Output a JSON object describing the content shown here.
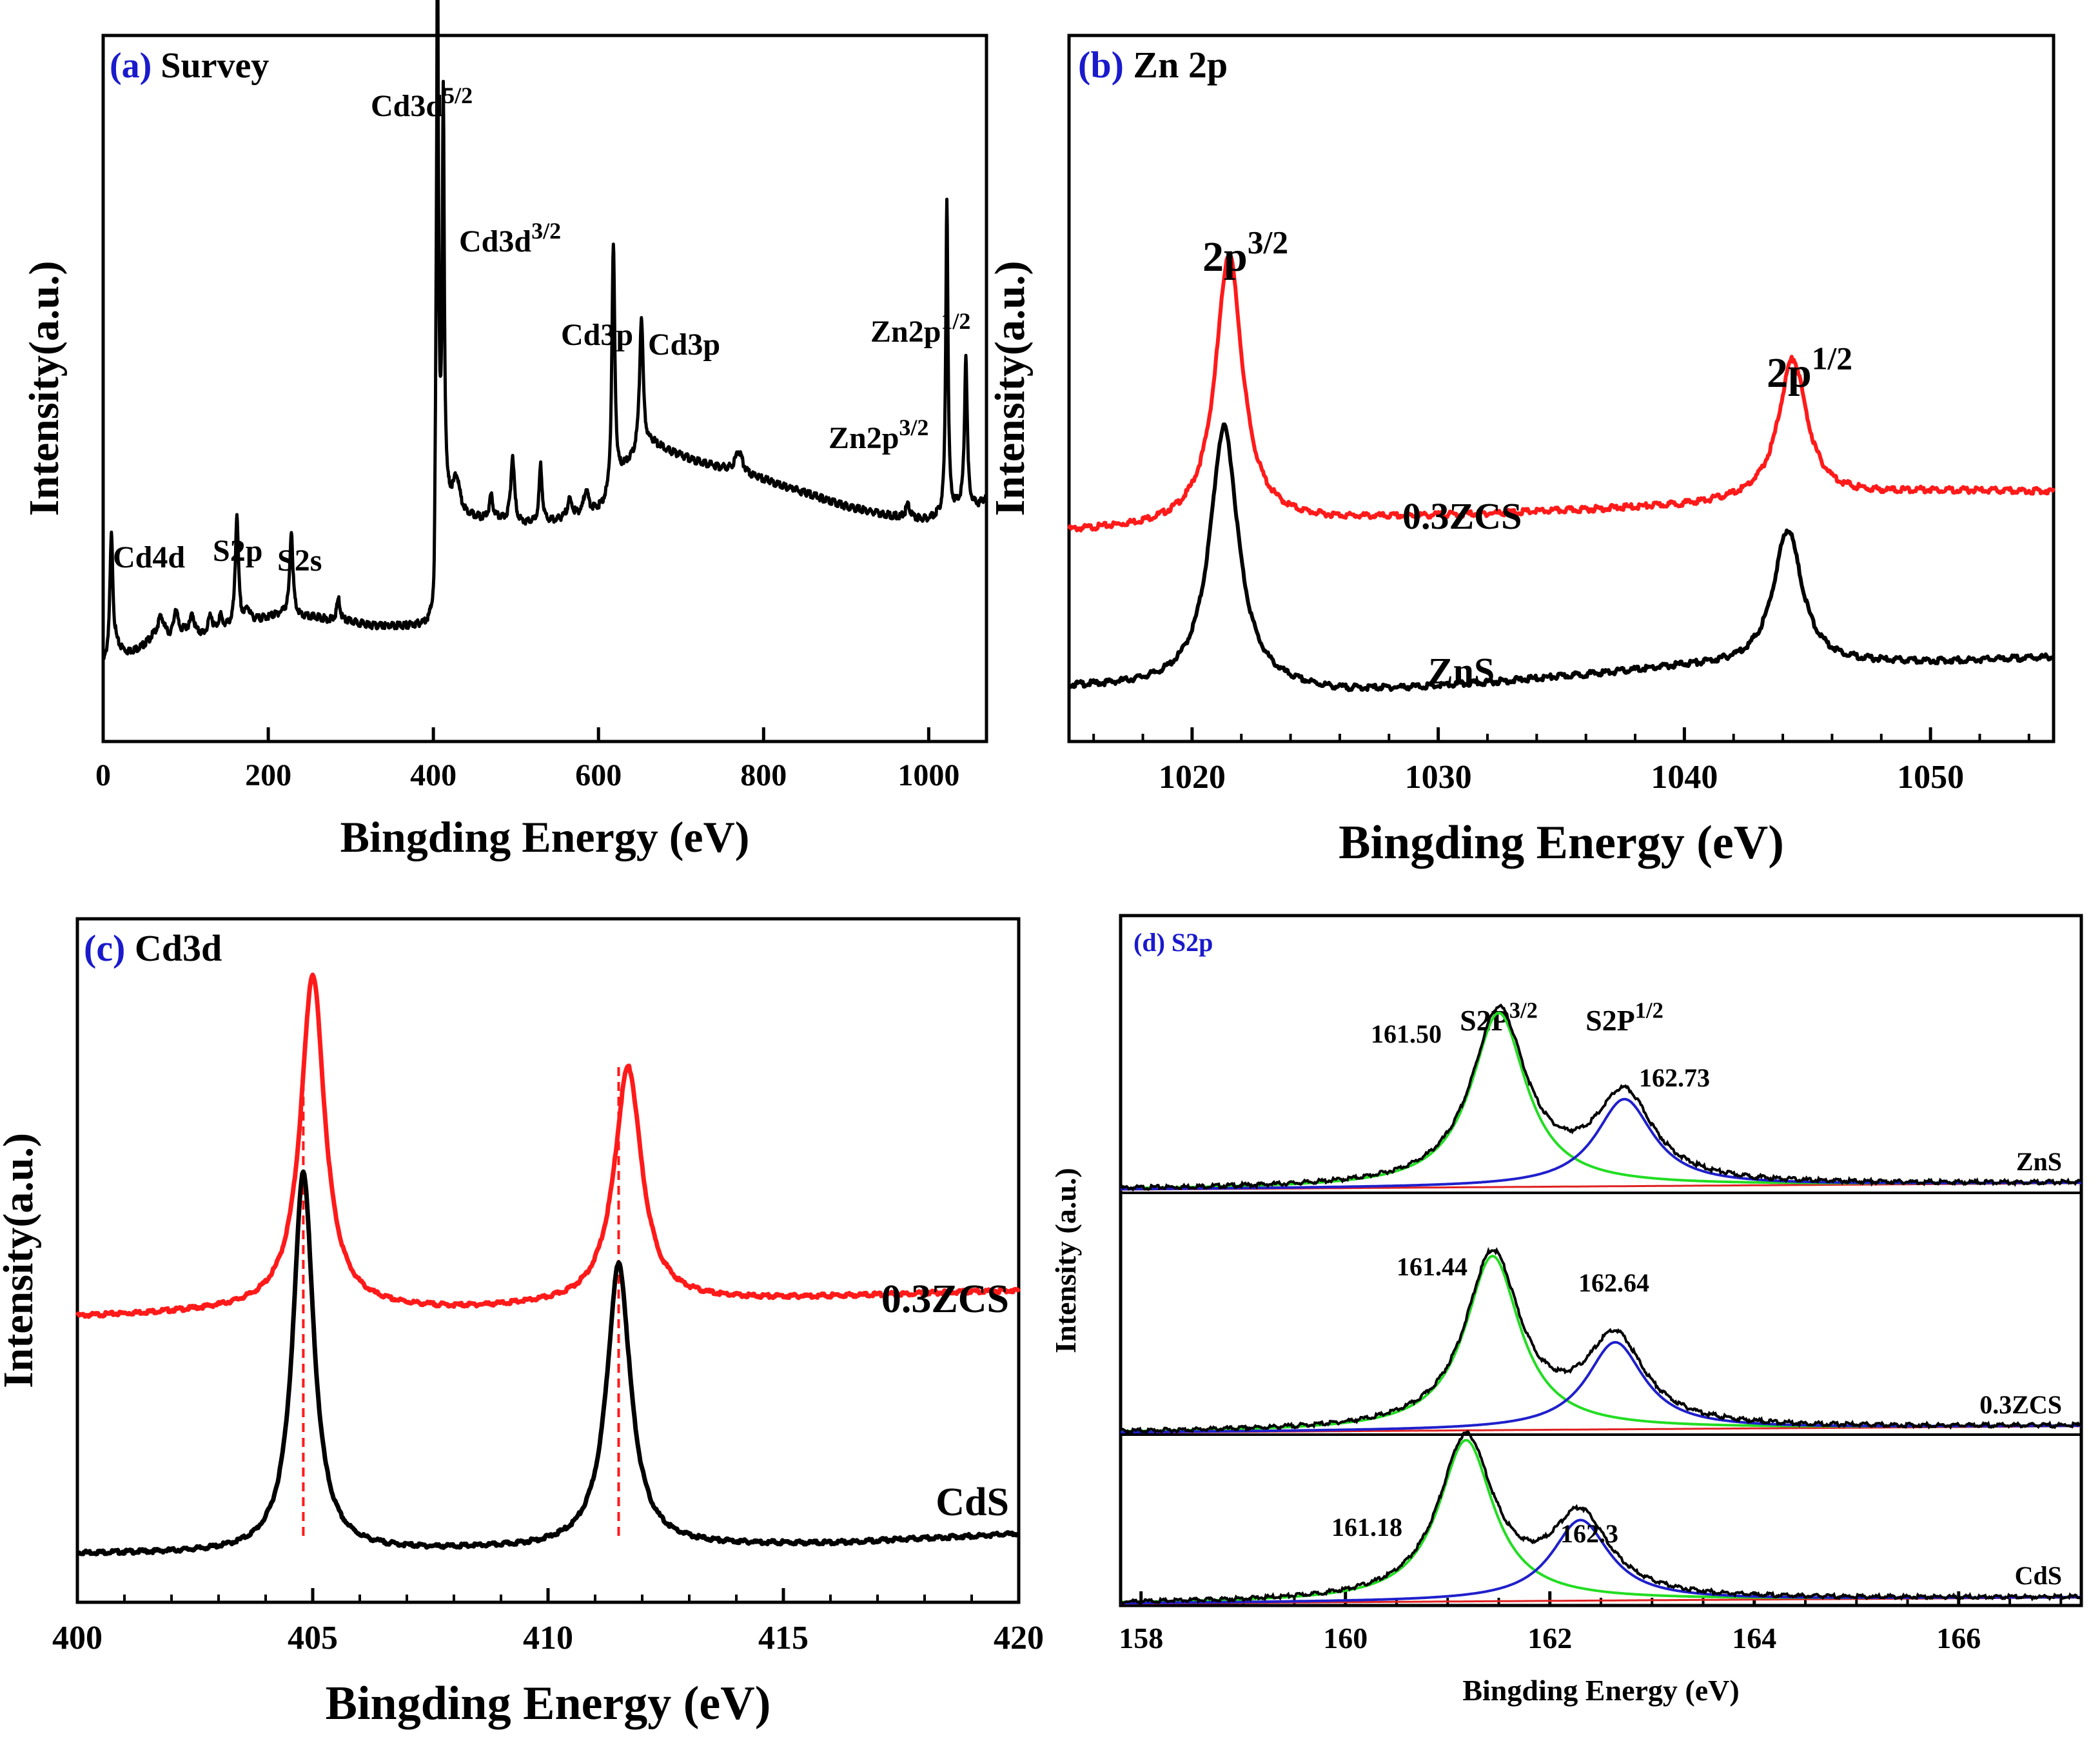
{
  "colors": {
    "black": "#000000",
    "red": "#ff1a1a",
    "green": "#22dd22",
    "blue": "#1f1fcc",
    "label_blue": "#1a1acc",
    "baseline_red": "#e02020"
  },
  "chart_data": [
    {
      "id": "a",
      "type": "line",
      "panel_letter": "(a)",
      "title": "Survey",
      "xlabel": "Bingding Energy (eV)",
      "ylabel": "Intensity(a.u.)",
      "xlim": [
        0,
        1070
      ],
      "ylim": [
        0,
        100
      ],
      "x_ticks": [
        0,
        200,
        400,
        600,
        800,
        1000
      ],
      "x_tick_labels": [
        "0",
        "200",
        "400",
        "600",
        "800",
        "1000"
      ],
      "series": [
        {
          "name": "survey",
          "color": "black",
          "baseline": [
            [
              0,
              6
            ],
            [
              5,
              7
            ],
            [
              15,
              10
            ],
            [
              30,
              9
            ],
            [
              45,
              10
            ],
            [
              60,
              12
            ],
            [
              80,
              12
            ],
            [
              100,
              14
            ],
            [
              120,
              13
            ],
            [
              140,
              14
            ],
            [
              160,
              15
            ],
            [
              180,
              16
            ],
            [
              200,
              17
            ],
            [
              220,
              18
            ],
            [
              240,
              17
            ],
            [
              260,
              17
            ],
            [
              280,
              16
            ],
            [
              300,
              16
            ],
            [
              330,
              15
            ],
            [
              360,
              15
            ],
            [
              390,
              15
            ],
            [
              401,
              15
            ],
            [
              403,
              42
            ],
            [
              420,
              42
            ],
            [
              440,
              40
            ],
            [
              460,
              39
            ],
            [
              480,
              39
            ],
            [
              500,
              38
            ],
            [
              530,
              38
            ],
            [
              560,
              39
            ],
            [
              600,
              41
            ],
            [
              615,
              43
            ],
            [
              630,
              50
            ],
            [
              650,
              54
            ],
            [
              665,
              56
            ],
            [
              690,
              54
            ],
            [
              720,
              52
            ],
            [
              760,
              50
            ],
            [
              800,
              48
            ],
            [
              850,
              45
            ],
            [
              900,
              42
            ],
            [
              950,
              40
            ],
            [
              980,
              39
            ],
            [
              1000,
              39
            ],
            [
              1020,
              40
            ],
            [
              1040,
              42
            ],
            [
              1060,
              42
            ],
            [
              1070,
              44
            ]
          ],
          "peaks": [
            [
              10,
              27,
              2.5
            ],
            [
              70,
              5,
              6
            ],
            [
              88,
              6,
              3
            ],
            [
              108,
              4,
              3
            ],
            [
              130,
              4,
              3
            ],
            [
              142,
              3,
              3
            ],
            [
              162,
              25,
              2.5
            ],
            [
              175,
              3,
              4
            ],
            [
              228,
              19,
              2.5
            ],
            [
              285,
              5,
              3
            ],
            [
              405,
              127,
              1.5
            ],
            [
              412,
              91,
              1.6
            ],
            [
              428,
              7,
              5
            ],
            [
              470,
              5,
              3
            ],
            [
              496,
              15,
              3
            ],
            [
              530,
              13,
              2.5
            ],
            [
              565,
              4,
              4
            ],
            [
              585,
              5,
              4
            ],
            [
              618,
              56,
              2.5
            ],
            [
              652,
              30,
              3
            ],
            [
              770,
              5,
              6
            ],
            [
              975,
              3,
              4
            ],
            [
              1022,
              71,
              1.8
            ],
            [
              1045,
              34,
              2.2
            ]
          ]
        }
      ],
      "annotations": [
        {
          "x": 10,
          "label": "Cd4d",
          "sup": ""
        },
        {
          "x": 162,
          "label": "S2p",
          "sup": ""
        },
        {
          "x": 228,
          "label": "S2s",
          "sup": ""
        },
        {
          "x": 405,
          "label": "Cd3d",
          "sup": "5/2"
        },
        {
          "x": 412,
          "label": "Cd3d",
          "sup": "3/2"
        },
        {
          "x": 618,
          "label": "Cd3p",
          "sup": ""
        },
        {
          "x": 652,
          "label": "Cd3p",
          "sup": ""
        },
        {
          "x": 1045,
          "label": "Zn2p",
          "sup": "1/2"
        },
        {
          "x": 1022,
          "label": "Zn2p",
          "sup": "3/2"
        }
      ]
    },
    {
      "id": "b",
      "type": "line",
      "panel_letter": "(b)",
      "title": "Zn 2p",
      "xlabel": "Bingding Energy (eV)",
      "ylabel": "Intensity(a.u.)",
      "xlim": [
        1015,
        1055
      ],
      "ylim": [
        0,
        100
      ],
      "x_ticks": [
        1020,
        1030,
        1040,
        1050
      ],
      "x_tick_labels": [
        "1020",
        "1030",
        "1040",
        "1050"
      ],
      "minor_step": 2,
      "series": [
        {
          "name": "0.3ZCS",
          "color": "red",
          "baseline": [
            [
              1015,
              34
            ],
            [
              1020,
              35
            ],
            [
              1030,
              37
            ],
            [
              1040,
              39
            ],
            [
              1050,
              42
            ],
            [
              1055,
              42
            ]
          ],
          "peaks": [
            [
              1021.5,
              54,
              0.75
            ],
            [
              1044.4,
              28,
              0.8
            ]
          ]
        },
        {
          "name": "ZnS",
          "color": "black",
          "baseline": [
            [
              1015,
              3
            ],
            [
              1020,
              3
            ],
            [
              1026,
              2
            ],
            [
              1030,
              3
            ],
            [
              1040,
              7
            ],
            [
              1050,
              8
            ],
            [
              1055,
              9
            ]
          ],
          "peaks": [
            [
              1021.3,
              52,
              0.8
            ],
            [
              1044.2,
              27,
              0.8
            ]
          ]
        }
      ],
      "annotations": [
        {
          "x": 1021.5,
          "label": "2p",
          "sup": "3/2"
        },
        {
          "x": 1044.4,
          "label": "2p",
          "sup": "1/2"
        }
      ],
      "legend": [
        {
          "series": "0.3ZCS",
          "label": "0.3ZCS"
        },
        {
          "series": "ZnS",
          "label": "ZnS"
        }
      ]
    },
    {
      "id": "c",
      "type": "line",
      "panel_letter": "(c)",
      "title": "Cd3d",
      "xlabel": "Bingding Energy (eV)",
      "ylabel": "Intensity(a.u.)",
      "xlim": [
        400,
        420
      ],
      "ylim": [
        0,
        100
      ],
      "x_ticks": [
        400,
        405,
        410,
        415,
        420
      ],
      "x_tick_labels": [
        "400",
        "405",
        "410",
        "415",
        "420"
      ],
      "minor_step": 1,
      "reference_lines": [
        404.8,
        411.5
      ],
      "series": [
        {
          "name": "0.3ZCS",
          "color": "red",
          "baseline": [
            [
              400,
              37
            ],
            [
              404,
              38
            ],
            [
              408,
              38
            ],
            [
              412,
              39
            ],
            [
              416,
              40
            ],
            [
              420,
              41
            ]
          ],
          "peaks": [
            [
              405,
              51,
              0.35
            ],
            [
              411.7,
              36,
              0.4
            ]
          ]
        },
        {
          "name": "CdS",
          "color": "black",
          "baseline": [
            [
              400,
              1
            ],
            [
              404,
              1
            ],
            [
              408,
              1.5
            ],
            [
              412,
              2
            ],
            [
              416,
              2.5
            ],
            [
              420,
              4
            ]
          ],
          "peaks": [
            [
              404.8,
              58,
              0.3
            ],
            [
              411.5,
              43,
              0.35
            ]
          ]
        }
      ],
      "legend": [
        {
          "series": "0.3ZCS",
          "label": "0.3ZCS"
        },
        {
          "series": "CdS",
          "label": "CdS"
        }
      ]
    },
    {
      "id": "d",
      "type": "line",
      "panel_letter": "(d)",
      "title": "S2p",
      "xlabel": "Bingding Energy (eV)",
      "ylabel": "Intensity (a.u.)",
      "xlim": [
        157.8,
        167.2
      ],
      "x_ticks": [
        158,
        160,
        162,
        164,
        166
      ],
      "x_tick_labels": [
        "158",
        "160",
        "162",
        "164",
        "166"
      ],
      "minor_step": 0.5,
      "headers": [
        {
          "x": 161.5,
          "label": "S2P",
          "sup": "3/2"
        },
        {
          "x": 162.73,
          "label": "S2P",
          "sup": "1/2"
        }
      ],
      "subplots": [
        {
          "sample": "ZnS",
          "p32": 161.5,
          "p12": 162.73,
          "label_p32": "161.50",
          "label_p12": "162.73",
          "h32": 1.0,
          "h12": 0.5,
          "width": 0.45
        },
        {
          "sample": "0.3ZCS",
          "p32": 161.44,
          "p12": 162.64,
          "label_p32": "161.44",
          "label_p12": "162.64",
          "h32": 1.0,
          "h12": 0.5,
          "width": 0.45
        },
        {
          "sample": "CdS",
          "p32": 161.18,
          "p12": 162.3,
          "label_p32": "161.18",
          "label_p12": "162.3",
          "h32": 1.0,
          "h12": 0.5,
          "width": 0.45
        }
      ]
    }
  ]
}
